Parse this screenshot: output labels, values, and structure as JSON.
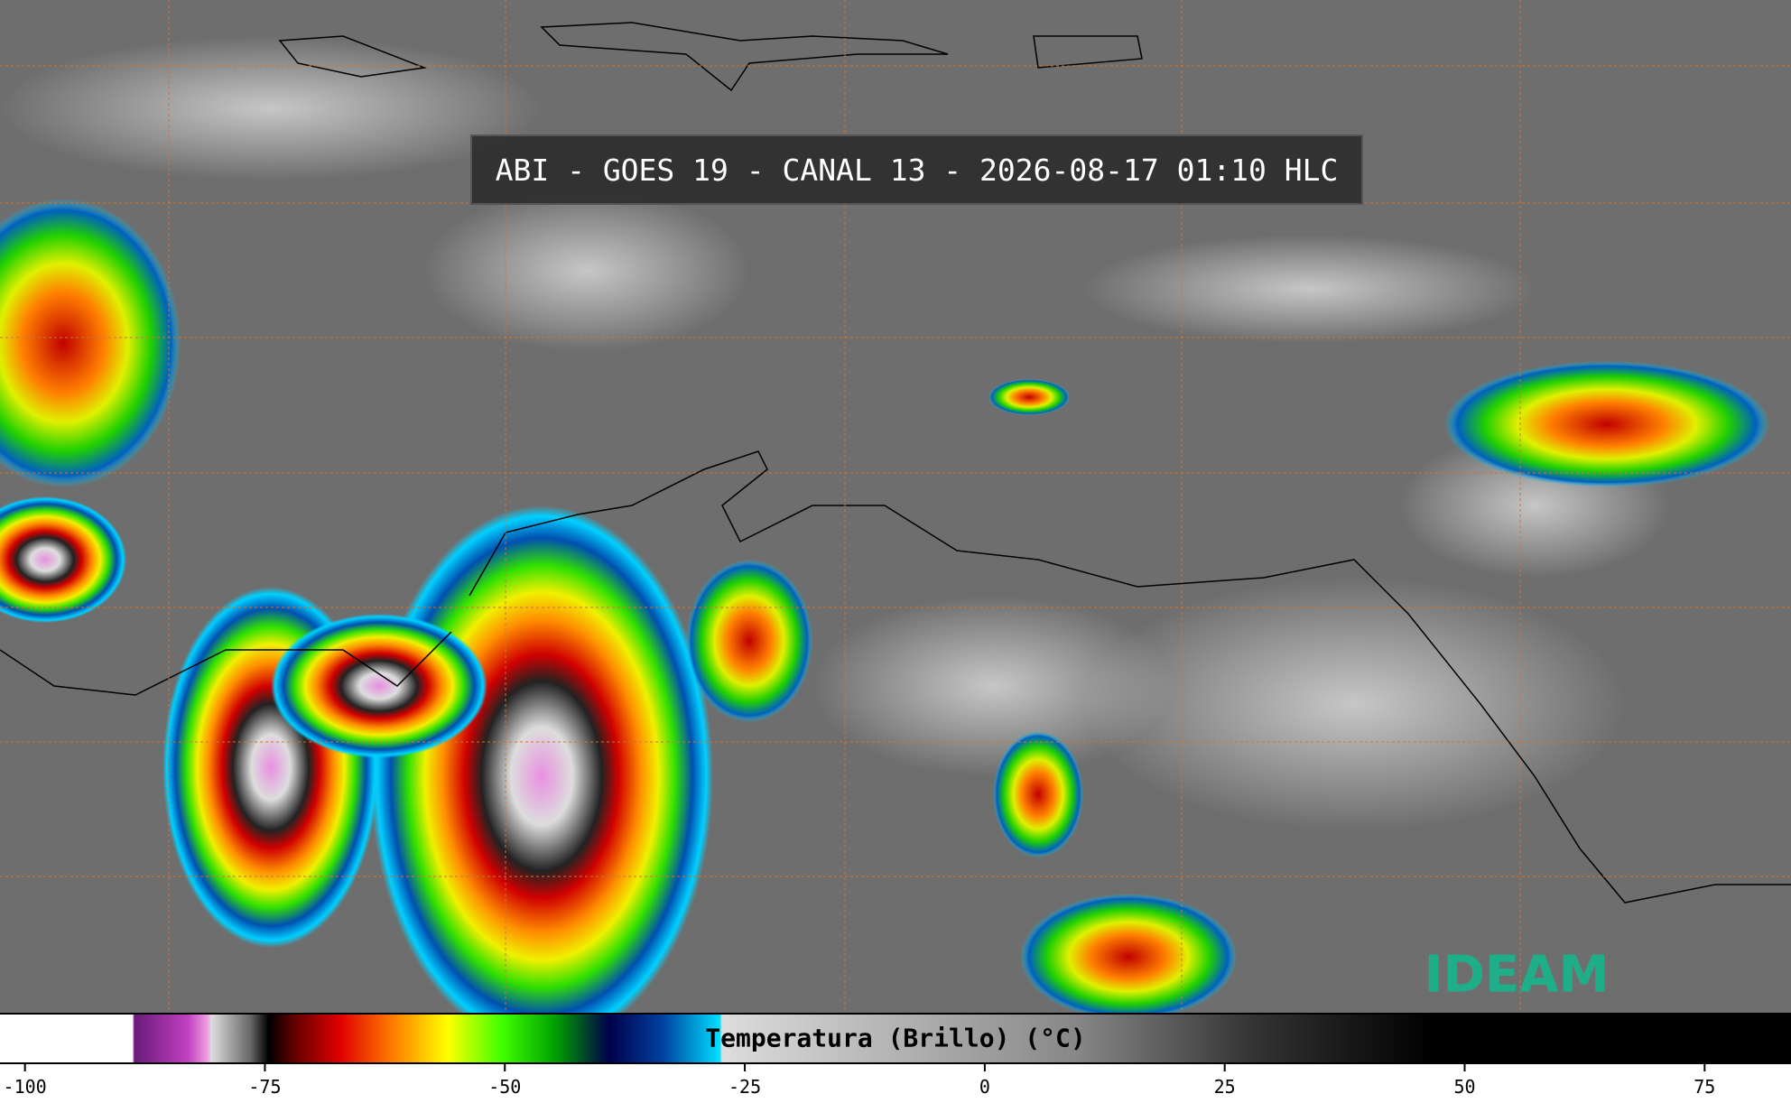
{
  "header": {
    "title": "ABI - GOES 19 - CANAL 13 - 2026-08-17 01:10 HLC"
  },
  "colorbar": {
    "label": "Temperatura (Brillo) (°C)",
    "lim": [
      -102.6,
      84
    ],
    "ticks": [
      -100,
      -75,
      -50,
      -25,
      0,
      25,
      50,
      75
    ]
  },
  "logo": {
    "text": "IDEAM"
  }
}
